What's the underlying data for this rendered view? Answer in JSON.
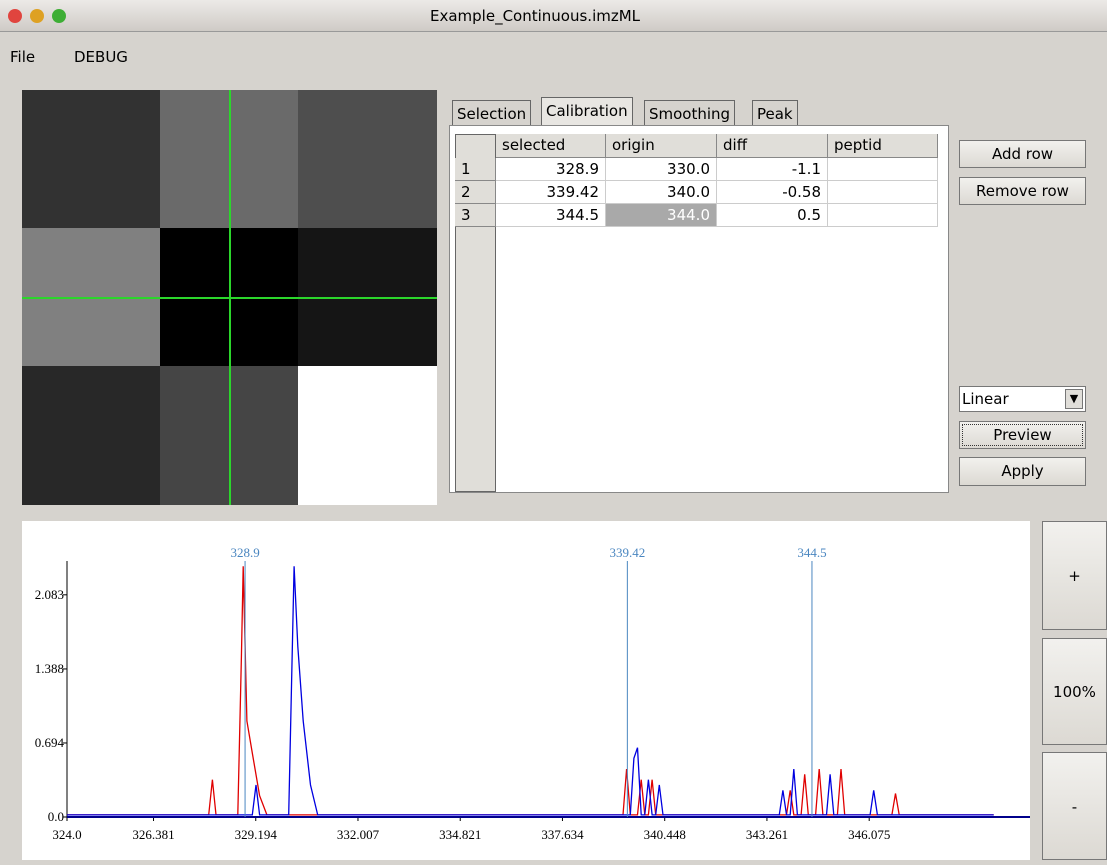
{
  "window": {
    "title": "Example_Continuous.imzML"
  },
  "menu": [
    "File",
    "DEBUG"
  ],
  "tabs": [
    "Selection",
    "Calibration",
    "Smoothing",
    "Peak"
  ],
  "table": {
    "columns": [
      "selected",
      "origin",
      "diff",
      "peptid"
    ],
    "rows": [
      [
        "1",
        "328.9",
        "330.0",
        "-1.1"
      ],
      [
        "2",
        "339.42",
        "340.0",
        "-0.58"
      ],
      [
        "3",
        "344.5",
        "344.0",
        "0.5"
      ]
    ]
  },
  "buttons": [
    "Add row",
    "Remove row",
    "Preview",
    "Apply"
  ],
  "method": "Linear",
  "zoom_buttons": [
    "+",
    "100%",
    "-"
  ],
  "chart_data": {
    "type": "line",
    "xlim": [
      324.0,
      350.5
    ],
    "ylim": [
      0,
      2.4
    ],
    "xticks": [
      {
        "value": 324.0,
        "label": "324.0"
      },
      326.381,
      329.194,
      332.007,
      334.821,
      337.634,
      340.448,
      343.261,
      346.075
    ],
    "yticks": [
      {
        "value": 0,
        "label": "0.0"
      },
      0.694,
      1.388,
      2.083
    ],
    "markers": [
      328.9,
      339.42,
      344.5
    ],
    "marker_color": "#4a86c0",
    "series": [
      {
        "color": "#e00000",
        "x": [
          324,
          327.9,
          328.0,
          328.1,
          328.7,
          328.8,
          328.85,
          328.95,
          329.1,
          329.3,
          329.5,
          330.5,
          339.3,
          339.4,
          339.5,
          339.7,
          339.8,
          339.9,
          340.0,
          340.1,
          340.2,
          343.8,
          343.9,
          344.0,
          344.2,
          344.3,
          344.4,
          344.6,
          344.7,
          344.8,
          345.2,
          345.3,
          345.4,
          346.7,
          346.8,
          346.9,
          349.5
        ],
        "values": [
          0.02,
          0.02,
          0.35,
          0.02,
          0.02,
          1.5,
          2.35,
          0.9,
          0.6,
          0.2,
          0.02,
          0.02,
          0.02,
          0.45,
          0.02,
          0.02,
          0.35,
          0.02,
          0.02,
          0.35,
          0.02,
          0.02,
          0.25,
          0.02,
          0.02,
          0.4,
          0.02,
          0.02,
          0.45,
          0.02,
          0.02,
          0.45,
          0.02,
          0.02,
          0.22,
          0.02,
          0.02
        ]
      },
      {
        "color": "#0000e0",
        "x": [
          324,
          329.1,
          329.2,
          329.3,
          330.1,
          330.25,
          330.35,
          330.5,
          330.7,
          330.9,
          339.5,
          339.6,
          339.7,
          339.8,
          339.9,
          340.0,
          340.1,
          340.2,
          340.3,
          340.4,
          343.6,
          343.7,
          343.8,
          343.9,
          344.0,
          344.1,
          344.9,
          345.0,
          345.1,
          346.1,
          346.2,
          346.3,
          349.5
        ],
        "values": [
          0.02,
          0.02,
          0.3,
          0.02,
          0.02,
          2.35,
          1.6,
          0.9,
          0.3,
          0.02,
          0.02,
          0.55,
          0.65,
          0.02,
          0.02,
          0.35,
          0.02,
          0.02,
          0.3,
          0.02,
          0.02,
          0.25,
          0.02,
          0.02,
          0.45,
          0.02,
          0.02,
          0.4,
          0.02,
          0.02,
          0.25,
          0.02,
          0.02
        ]
      }
    ]
  }
}
